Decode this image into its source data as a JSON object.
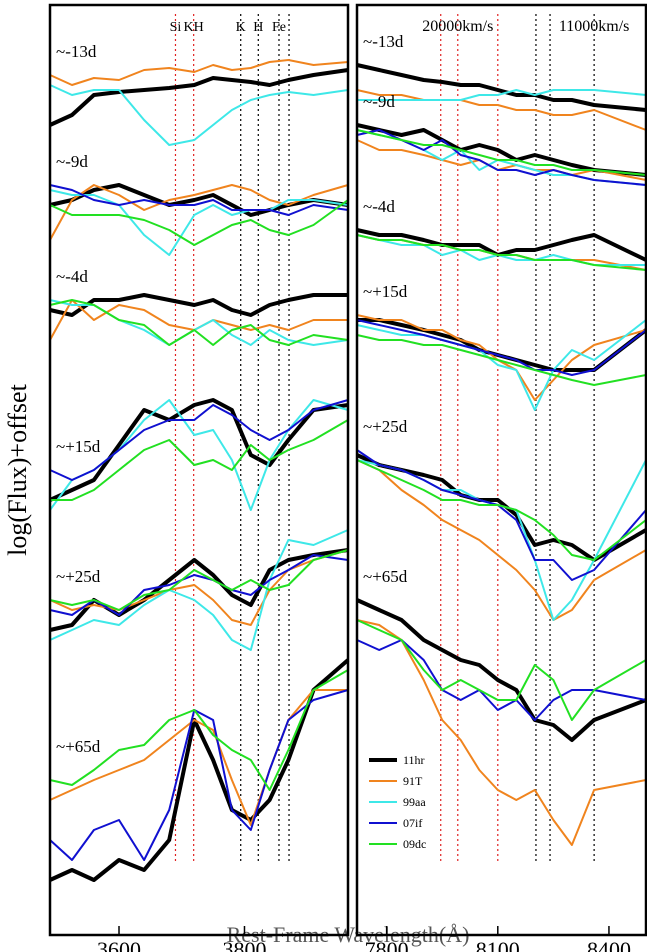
{
  "figure": {
    "xlabel": "Rest-Frame Wavelength(Å)",
    "ylabel": "log(Flux)+offset"
  },
  "chart_data": [
    {
      "type": "line",
      "xlim": [
        3490,
        3965
      ],
      "xticks": [
        3600,
        3800
      ],
      "ylim": [
        6.5,
        99.5
      ],
      "x": [
        3490,
        3525,
        3560,
        3600,
        3640,
        3680,
        3720,
        3750,
        3780,
        3810,
        3840,
        3870,
        3910,
        3965
      ],
      "epochs": [
        "~-13d",
        "~-9d",
        "~-4d",
        "~+15d",
        "~+25d",
        "~+65d"
      ],
      "vlines": [
        {
          "x": 3690,
          "color": "#e02020",
          "label": "Si"
        },
        {
          "x": 3719,
          "color": "#e02020",
          "label": "KH"
        },
        {
          "x": 3794,
          "color": "#000000",
          "label": "K"
        },
        {
          "x": 3822,
          "color": "#000000",
          "label": "H"
        },
        {
          "x": 3855,
          "color": "#000000",
          "label": "Fe"
        },
        {
          "x": 3871,
          "color": "#000000"
        }
      ],
      "series": [
        {
          "name": "11hr",
          "color": "#000000",
          "width": 4,
          "values": [
            [
              87.5,
              88.5,
              90.5,
              90.8,
              91,
              91.2,
              91.5,
              92.2,
              92,
              91.8,
              91.5,
              92,
              92.5,
              93
            ],
            [
              79.5,
              80,
              81,
              81.5,
              80.5,
              79.5,
              80,
              80.5,
              79.5,
              78.5,
              79,
              79.5,
              80,
              79.5
            ],
            [
              69,
              68.5,
              70,
              70,
              70.5,
              70,
              69.5,
              70,
              69,
              68.5,
              69.5,
              70,
              70.5,
              70.5
            ],
            [
              50,
              51,
              52,
              55.5,
              59,
              58,
              59.5,
              60,
              59,
              54.5,
              53.5,
              56,
              59,
              59.5
            ],
            [
              37,
              37.5,
              40,
              38.5,
              40,
              42,
              44,
              42.5,
              40.5,
              39.5,
              43,
              44,
              44.5,
              45
            ],
            [
              12,
              13,
              12,
              14,
              13,
              16,
              28,
              24,
              19,
              18,
              20,
              24,
              31,
              34
            ]
          ]
        },
        {
          "name": "91T",
          "color": "#f0841e",
          "width": 2,
          "values": [
            [
              92.5,
              91.5,
              92.2,
              92,
              93,
              93.2,
              92.8,
              93.5,
              93,
              93.2,
              93.8,
              94,
              93.5,
              93.8
            ],
            [
              76,
              80,
              81.5,
              80.5,
              79,
              80,
              80.5,
              81,
              81.5,
              81,
              80,
              79.5,
              80.5,
              81.5
            ],
            [
              66,
              70,
              68,
              69.5,
              69,
              67.5,
              67,
              68,
              67.5,
              67,
              67.5,
              67,
              68,
              68
            ],
            null,
            [
              40,
              39,
              39.5,
              39,
              40,
              41,
              41.5,
              40,
              38,
              37.5,
              41,
              43,
              44,
              45
            ],
            [
              20,
              21,
              22,
              23,
              24,
              26,
              28,
              27,
              22,
              17.5,
              23,
              28,
              31,
              31
            ]
          ]
        },
        {
          "name": "99aa",
          "color": "#3ee8e8",
          "width": 2,
          "values": [
            [
              91.5,
              90.5,
              91,
              91,
              88,
              85.5,
              86,
              87.5,
              89,
              90,
              90.5,
              90.8,
              90.5,
              91
            ],
            [
              81,
              80.5,
              80.5,
              79.5,
              76.5,
              74.5,
              78.5,
              79.5,
              78.5,
              79,
              79,
              80,
              80,
              79.5
            ],
            [
              70,
              69.5,
              69.5,
              68,
              67,
              65.5,
              67,
              68,
              66.5,
              65.5,
              67,
              66,
              65.5,
              66
            ],
            [
              49,
              52,
              53,
              55,
              58,
              60,
              56.5,
              57,
              54,
              49,
              54,
              57,
              60,
              59
            ],
            [
              36,
              37,
              38,
              37.5,
              39.5,
              41,
              40,
              38.5,
              36,
              35,
              42,
              46,
              45.5,
              47
            ],
            null
          ]
        },
        {
          "name": "07if",
          "color": "#1010d0",
          "width": 2,
          "values": [
            null,
            [
              81.5,
              81,
              80,
              79.5,
              80,
              79.5,
              79.5,
              80,
              79,
              79,
              79,
              78.5,
              79.5,
              79
            ],
            null,
            [
              53,
              52,
              53,
              55,
              57,
              58,
              58,
              59.5,
              58.5,
              57,
              56,
              57,
              59,
              60
            ],
            [
              39,
              38.5,
              40,
              38.5,
              41,
              41.5,
              42.5,
              42,
              41,
              40.5,
              42,
              43,
              44.5,
              44
            ],
            [
              16,
              14,
              17,
              18,
              14,
              19,
              29,
              28,
              19,
              17,
              23,
              28,
              30,
              31
            ]
          ]
        },
        {
          "name": "09dc",
          "color": "#22e022",
          "width": 2,
          "values": [
            null,
            [
              79.5,
              78.5,
              78.5,
              78.5,
              78,
              77,
              75.5,
              76.5,
              77.5,
              78,
              77,
              76.5,
              77.5,
              80
            ],
            [
              69.5,
              70,
              69.5,
              68,
              67.5,
              65.5,
              67,
              65.5,
              67,
              67.5,
              66,
              65.5,
              66.5,
              66
            ],
            [
              50,
              50,
              51,
              53,
              55,
              56,
              53.5,
              54,
              53,
              55.5,
              54,
              55,
              56,
              58
            ],
            [
              40,
              39.5,
              40,
              39,
              40.5,
              41,
              43,
              42,
              41,
              42,
              41,
              41.5,
              44,
              45
            ],
            [
              22,
              21.5,
              23,
              25,
              25.5,
              28,
              29,
              26.5,
              25,
              24,
              21,
              25,
              31,
              33
            ]
          ]
        }
      ]
    },
    {
      "type": "line",
      "xlim": [
        7720,
        8500
      ],
      "xticks": [
        7800,
        8100,
        8400
      ],
      "ylim": [
        6.5,
        99.5
      ],
      "legend": "lower left",
      "x": [
        7720,
        7780,
        7840,
        7900,
        7950,
        8000,
        8050,
        8100,
        8150,
        8200,
        8250,
        8300,
        8360,
        8500
      ],
      "epochs": [
        "~-13d",
        "~-9d",
        "~-4d",
        "~+15d",
        "~+25d",
        "~+65d"
      ],
      "vlines": [
        {
          "x": 7946,
          "color": "#e02020"
        },
        {
          "x": 7992,
          "color": "#e02020",
          "label": "20000km/s"
        },
        {
          "x": 8100,
          "color": "#e02020"
        },
        {
          "x": 8203,
          "color": "#000000"
        },
        {
          "x": 8241,
          "color": "#000000"
        },
        {
          "x": 8360,
          "color": "#000000",
          "label": "11000km/s"
        }
      ],
      "series": [
        {
          "name": "11hr",
          "color": "#000000",
          "width": 4,
          "values": [
            [
              93.5,
              93,
              92.5,
              92,
              91.8,
              91.5,
              91.5,
              91,
              90.5,
              90.5,
              90,
              90,
              89.5,
              89
            ],
            [
              87.5,
              87,
              86.5,
              87,
              86,
              85,
              85.5,
              85,
              84,
              84.5,
              84,
              83.5,
              83,
              82.5
            ],
            [
              77,
              76.5,
              76.5,
              76,
              75.5,
              75.5,
              75.5,
              74.5,
              75,
              75,
              75.5,
              76,
              76.5,
              74
            ],
            [
              68,
              68,
              67.5,
              67,
              66.5,
              66,
              65,
              64.5,
              64,
              63.5,
              63,
              63,
              63,
              67
            ],
            [
              54.5,
              53.5,
              53,
              52.5,
              52,
              50.5,
              50,
              50,
              48.5,
              45.5,
              46,
              45.5,
              44,
              47
            ],
            [
              40,
              39,
              38,
              36,
              35,
              34,
              33.5,
              32,
              31,
              28,
              27.5,
              26,
              28,
              30
            ]
          ]
        },
        {
          "name": "91T",
          "color": "#f0841e",
          "width": 2,
          "values": [
            [
              91,
              90.5,
              90.5,
              90,
              90,
              90,
              89.5,
              89.5,
              89,
              89,
              88.5,
              88.5,
              89,
              87
            ],
            [
              86,
              85,
              85,
              84.5,
              84,
              83.5,
              84,
              83,
              83.5,
              83,
              83,
              82.5,
              83,
              82
            ],
            [
              76.5,
              76,
              76,
              75.5,
              75.5,
              75,
              75,
              74.5,
              74.5,
              74,
              74,
              74,
              74,
              73
            ],
            [
              68.5,
              68,
              68,
              67,
              67,
              66,
              65.5,
              64,
              63,
              60,
              62,
              64,
              65.5,
              67
            ],
            [
              54,
              53,
              51,
              49.5,
              48,
              47,
              46,
              44.5,
              43,
              41,
              38,
              39,
              42,
              45
            ],
            [
              38,
              37.5,
              36,
              32,
              28,
              26,
              23,
              21,
              20,
              21,
              18,
              15.5,
              21,
              22
            ]
          ]
        },
        {
          "name": "99aa",
          "color": "#3ee8e8",
          "width": 2,
          "values": [
            [
              90,
              90,
              90,
              90,
              90,
              90,
              90.5,
              90.5,
              91,
              90.5,
              91,
              91,
              91,
              90.5
            ],
            [
              87,
              86.5,
              86,
              85,
              84,
              85,
              83,
              84,
              83.5,
              83,
              82.5,
              82.5,
              82,
              81.5
            ],
            [
              76.5,
              76,
              75.5,
              75.5,
              74.5,
              75,
              74,
              74.5,
              74,
              74,
              74.5,
              74,
              73.5,
              73.5
            ],
            [
              67.5,
              67,
              66.5,
              66.5,
              66,
              65.5,
              65,
              63.5,
              63,
              59,
              63,
              65,
              64,
              68
            ],
            [
              54,
              53.5,
              53,
              52,
              51,
              51,
              50,
              49.5,
              49,
              44,
              38,
              40,
              44,
              54
            ],
            null
          ]
        },
        {
          "name": "07if",
          "color": "#1010d0",
          "width": 2,
          "values": [
            null,
            [
              86.5,
              87,
              86,
              85,
              86,
              84.5,
              84,
              83,
              83,
              82.5,
              83,
              82.5,
              82,
              81.5
            ],
            null,
            [
              68,
              67.5,
              67,
              66.5,
              66,
              65.5,
              65,
              64.5,
              64,
              63,
              63,
              62.5,
              63,
              67
            ],
            [
              55,
              53.5,
              53,
              52,
              51,
              50.5,
              50,
              49.5,
              48,
              44,
              44,
              42,
              43,
              49
            ],
            [
              36,
              35,
              36,
              34,
              31,
              30,
              31,
              29,
              30,
              28,
              30,
              31,
              31,
              30
            ]
          ]
        },
        {
          "name": "09dc",
          "color": "#22e022",
          "width": 2,
          "values": [
            null,
            [
              87,
              86.5,
              86,
              85.5,
              85.5,
              85,
              84.5,
              84,
              84,
              83.5,
              83.5,
              83,
              83,
              82.5
            ],
            [
              76.5,
              76,
              76,
              75.5,
              75.5,
              75,
              75,
              74.5,
              74.5,
              74,
              74,
              74,
              73.5,
              73
            ],
            [
              66.5,
              66,
              66,
              65.5,
              65.5,
              65,
              64.5,
              64,
              63.5,
              63,
              62.5,
              62,
              61.5,
              62.5
            ],
            [
              54,
              53,
              52,
              51,
              50,
              50,
              49.5,
              49.5,
              49,
              48,
              46.5,
              44.5,
              44,
              48
            ],
            [
              38,
              37,
              36,
              33,
              31,
              32,
              31,
              30,
              30,
              33.5,
              32,
              28,
              31,
              34
            ]
          ]
        }
      ]
    }
  ]
}
